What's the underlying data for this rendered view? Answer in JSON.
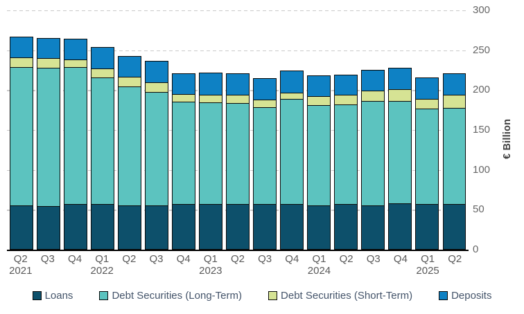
{
  "chart_data": {
    "type": "bar",
    "stacked": true,
    "orientation": "vertical",
    "ylabel": "€ Billion",
    "ylim": [
      0,
      300
    ],
    "y_ticks": [
      0,
      50,
      100,
      150,
      200,
      250,
      300
    ],
    "y_axis_side": "right",
    "grid": "horizontal-dashed",
    "legend_position": "bottom",
    "categories": [
      {
        "q": "Q2",
        "year": "2021"
      },
      {
        "q": "Q3",
        "year": ""
      },
      {
        "q": "Q4",
        "year": ""
      },
      {
        "q": "Q1",
        "year": "2022"
      },
      {
        "q": "Q2",
        "year": ""
      },
      {
        "q": "Q3",
        "year": ""
      },
      {
        "q": "Q4",
        "year": ""
      },
      {
        "q": "Q1",
        "year": "2023"
      },
      {
        "q": "Q2",
        "year": ""
      },
      {
        "q": "Q3",
        "year": ""
      },
      {
        "q": "Q4",
        "year": ""
      },
      {
        "q": "Q1",
        "year": "2024"
      },
      {
        "q": "Q2",
        "year": ""
      },
      {
        "q": "Q3",
        "year": ""
      },
      {
        "q": "Q4",
        "year": ""
      },
      {
        "q": "Q1",
        "year": "2025"
      },
      {
        "q": "Q2",
        "year": ""
      }
    ],
    "series": [
      {
        "name": "Loans",
        "color": "#0d506b",
        "values": [
          55,
          54,
          56,
          56,
          55,
          55,
          56,
          56,
          56,
          56,
          56,
          55,
          56,
          55,
          57,
          56,
          56
        ]
      },
      {
        "name": "Debt Securities (Long-Term)",
        "color": "#5cc3bf",
        "values": [
          173,
          173,
          172,
          159,
          149,
          142,
          129,
          128,
          127,
          122,
          132,
          125,
          125,
          131,
          129,
          120,
          121
        ]
      },
      {
        "name": "Debt Securities (Short-Term)",
        "color": "#d6e394",
        "values": [
          12,
          12,
          10,
          11,
          12,
          12,
          9,
          9,
          10,
          9,
          8,
          12,
          12,
          13,
          14,
          12,
          16
        ]
      },
      {
        "name": "Deposits",
        "color": "#0e81c4",
        "values": [
          25,
          25,
          25,
          26,
          25,
          26,
          25,
          27,
          26,
          26,
          27,
          25,
          25,
          25,
          26,
          26,
          26
        ]
      }
    ]
  },
  "axis": {
    "ylabel": "€ Billion"
  },
  "style": {
    "grid_color": "#c9c9c9",
    "axis_line_color": "#000000",
    "tick_label_color": "#666666",
    "xlabel_color": "#595959",
    "legend_text_color": "#44546a",
    "bar_border_color": "#0a0a0a"
  }
}
